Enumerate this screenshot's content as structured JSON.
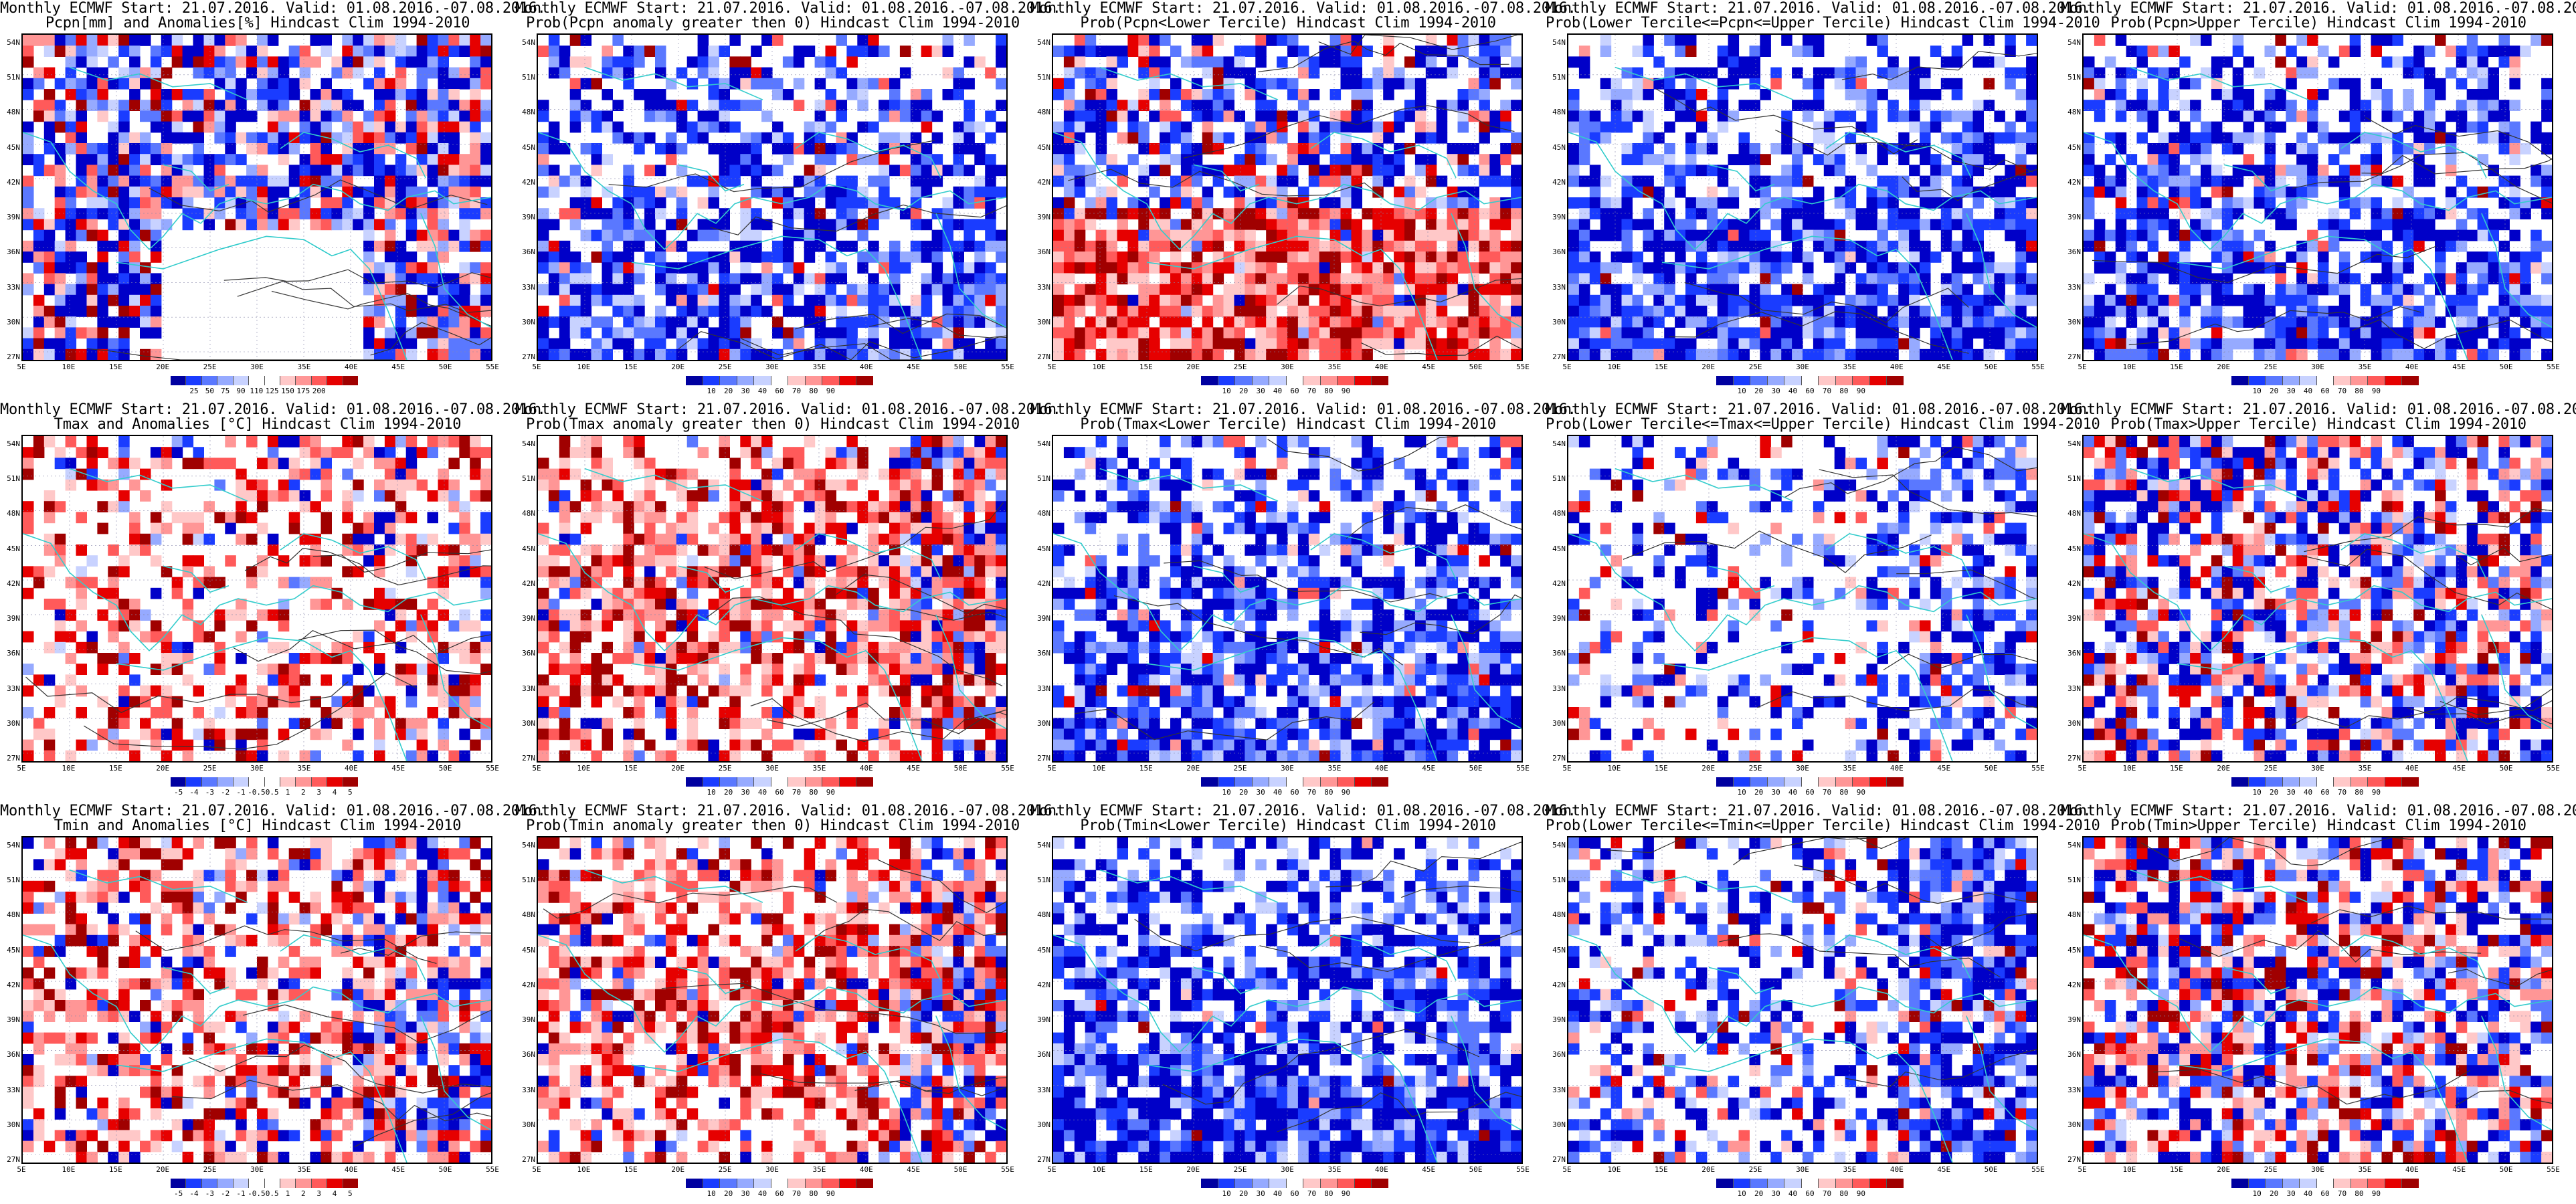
{
  "title_prefix": "Monthly ECMWF Start: 21.07.2016. Valid: 01.08.2016.-07.08.2016.",
  "y_labels": [
    "54N",
    "51N",
    "48N",
    "45N",
    "42N",
    "39N",
    "36N",
    "33N",
    "30N",
    "27N"
  ],
  "x_labels": [
    "5E",
    "10E",
    "15E",
    "20E",
    "25E",
    "30E",
    "35E",
    "40E",
    "45E",
    "50E",
    "55E"
  ],
  "colors": {
    "coast": "#33cccc",
    "contour": "#333333",
    "blue_scale": [
      "#0000c8",
      "#1a3cff",
      "#5a78ff",
      "#96aaff",
      "#c8d2ff",
      "#ffffff"
    ],
    "red_scale": [
      "#ffffff",
      "#ffc8c8",
      "#ff9696",
      "#ff5a5a",
      "#e60000",
      "#a00000"
    ]
  },
  "panels": [
    {
      "id": "pcpn-anom",
      "subtitle": "Pcpn[mm] and Anomalies[%] Hindcast Clim 1994-2010",
      "colorbar": {
        "colors": [
          "#0000a0",
          "#1a3cff",
          "#5a78ff",
          "#96aaff",
          "#c8d2ff",
          "#ffffff",
          "#ffffff",
          "#ffc8c8",
          "#ff9696",
          "#ff5a5a",
          "#e60000",
          "#a00000"
        ],
        "ticks": [
          "25",
          "50",
          "75",
          "90",
          "110",
          "125",
          "150",
          "175",
          "200"
        ]
      }
    },
    {
      "id": "pcpn-prob-pos",
      "subtitle": "Prob(Pcpn anomaly greater then 0) Hindcast Clim 1994-2010",
      "colorbar": {
        "colors": [
          "#0000a0",
          "#1a3cff",
          "#5a78ff",
          "#96aaff",
          "#c8d2ff",
          "#ffffff",
          "#ffc8c8",
          "#ff9696",
          "#ff5a5a",
          "#e60000",
          "#a00000"
        ],
        "ticks": [
          "10",
          "20",
          "30",
          "40",
          "60",
          "70",
          "80",
          "90"
        ]
      }
    },
    {
      "id": "pcpn-prob-lower",
      "subtitle": "Prob(Pcpn<Lower Tercile) Hindcast Clim 1994-2010",
      "colorbar": {
        "colors": [
          "#0000a0",
          "#1a3cff",
          "#5a78ff",
          "#96aaff",
          "#c8d2ff",
          "#ffffff",
          "#ffc8c8",
          "#ff9696",
          "#ff5a5a",
          "#e60000",
          "#a00000"
        ],
        "ticks": [
          "10",
          "20",
          "30",
          "40",
          "60",
          "70",
          "80",
          "90"
        ]
      }
    },
    {
      "id": "pcpn-prob-middle",
      "subtitle": "Prob(Lower Tercile<=Pcpn<=Upper Tercile) Hindcast Clim 1994-2010",
      "colorbar": {
        "colors": [
          "#0000a0",
          "#1a3cff",
          "#5a78ff",
          "#96aaff",
          "#c8d2ff",
          "#ffffff",
          "#ffc8c8",
          "#ff9696",
          "#ff5a5a",
          "#e60000",
          "#a00000"
        ],
        "ticks": [
          "10",
          "20",
          "30",
          "40",
          "60",
          "70",
          "80",
          "90"
        ]
      }
    },
    {
      "id": "pcpn-prob-upper",
      "subtitle": "Prob(Pcpn>Upper Tercile) Hindcast Clim 1994-2010",
      "colorbar": {
        "colors": [
          "#0000a0",
          "#1a3cff",
          "#5a78ff",
          "#96aaff",
          "#c8d2ff",
          "#ffffff",
          "#ffc8c8",
          "#ff9696",
          "#ff5a5a",
          "#e60000",
          "#a00000"
        ],
        "ticks": [
          "10",
          "20",
          "30",
          "40",
          "60",
          "70",
          "80",
          "90"
        ]
      }
    },
    {
      "id": "tmax-anom",
      "subtitle": "Tmax and Anomalies [°C] Hindcast Clim 1994-2010",
      "colorbar": {
        "colors": [
          "#0000a0",
          "#1a3cff",
          "#5a78ff",
          "#96aaff",
          "#c8d2ff",
          "#ffffff",
          "#ffffff",
          "#ffc8c8",
          "#ff9696",
          "#ff5a5a",
          "#e60000",
          "#a00000"
        ],
        "ticks": [
          "-5",
          "-4",
          "-3",
          "-2",
          "-1",
          "-0.5",
          "0.5",
          "1",
          "2",
          "3",
          "4",
          "5"
        ]
      }
    },
    {
      "id": "tmax-prob-pos",
      "subtitle": "Prob(Tmax anomaly greater then 0) Hindcast Clim 1994-2010",
      "colorbar": {
        "colors": [
          "#0000a0",
          "#1a3cff",
          "#5a78ff",
          "#96aaff",
          "#c8d2ff",
          "#ffffff",
          "#ffc8c8",
          "#ff9696",
          "#ff5a5a",
          "#e60000",
          "#a00000"
        ],
        "ticks": [
          "10",
          "20",
          "30",
          "40",
          "60",
          "70",
          "80",
          "90"
        ]
      }
    },
    {
      "id": "tmax-prob-lower",
      "subtitle": "Prob(Tmax<Lower Tercile) Hindcast Clim 1994-2010",
      "colorbar": {
        "colors": [
          "#0000a0",
          "#1a3cff",
          "#5a78ff",
          "#96aaff",
          "#c8d2ff",
          "#ffffff",
          "#ffc8c8",
          "#ff9696",
          "#ff5a5a",
          "#e60000",
          "#a00000"
        ],
        "ticks": [
          "10",
          "20",
          "30",
          "40",
          "60",
          "70",
          "80",
          "90"
        ]
      }
    },
    {
      "id": "tmax-prob-middle",
      "subtitle": "Prob(Lower Tercile<=Tmax<=Upper Tercile) Hindcast Clim 1994-2010",
      "colorbar": {
        "colors": [
          "#0000a0",
          "#1a3cff",
          "#5a78ff",
          "#96aaff",
          "#c8d2ff",
          "#ffffff",
          "#ffc8c8",
          "#ff9696",
          "#ff5a5a",
          "#e60000",
          "#a00000"
        ],
        "ticks": [
          "10",
          "20",
          "30",
          "40",
          "60",
          "70",
          "80",
          "90"
        ]
      }
    },
    {
      "id": "tmax-prob-upper",
      "subtitle": "Prob(Tmax>Upper Tercile) Hindcast Clim 1994-2010",
      "colorbar": {
        "colors": [
          "#0000a0",
          "#1a3cff",
          "#5a78ff",
          "#96aaff",
          "#c8d2ff",
          "#ffffff",
          "#ffc8c8",
          "#ff9696",
          "#ff5a5a",
          "#e60000",
          "#a00000"
        ],
        "ticks": [
          "10",
          "20",
          "30",
          "40",
          "60",
          "70",
          "80",
          "90"
        ]
      }
    },
    {
      "id": "tmin-anom",
      "subtitle": "Tmin and Anomalies [°C] Hindcast Clim 1994-2010",
      "colorbar": {
        "colors": [
          "#0000a0",
          "#1a3cff",
          "#5a78ff",
          "#96aaff",
          "#c8d2ff",
          "#ffffff",
          "#ffffff",
          "#ffc8c8",
          "#ff9696",
          "#ff5a5a",
          "#e60000",
          "#a00000"
        ],
        "ticks": [
          "-5",
          "-4",
          "-3",
          "-2",
          "-1",
          "-0.5",
          "0.5",
          "1",
          "2",
          "3",
          "4",
          "5"
        ]
      }
    },
    {
      "id": "tmin-prob-pos",
      "subtitle": "Prob(Tmin anomaly greater then 0) Hindcast Clim 1994-2010",
      "colorbar": {
        "colors": [
          "#0000a0",
          "#1a3cff",
          "#5a78ff",
          "#96aaff",
          "#c8d2ff",
          "#ffffff",
          "#ffc8c8",
          "#ff9696",
          "#ff5a5a",
          "#e60000",
          "#a00000"
        ],
        "ticks": [
          "10",
          "20",
          "30",
          "40",
          "60",
          "70",
          "80",
          "90"
        ]
      }
    },
    {
      "id": "tmin-prob-lower",
      "subtitle": "Prob(Tmin<Lower Tercile) Hindcast Clim 1994-2010",
      "colorbar": {
        "colors": [
          "#0000a0",
          "#1a3cff",
          "#5a78ff",
          "#96aaff",
          "#c8d2ff",
          "#ffffff",
          "#ffc8c8",
          "#ff9696",
          "#ff5a5a",
          "#e60000",
          "#a00000"
        ],
        "ticks": [
          "10",
          "20",
          "30",
          "40",
          "60",
          "70",
          "80",
          "90"
        ]
      }
    },
    {
      "id": "tmin-prob-middle",
      "subtitle": "Prob(Lower Tercile<=Tmin<=Upper Tercile) Hindcast Clim 1994-2010",
      "colorbar": {
        "colors": [
          "#0000a0",
          "#1a3cff",
          "#5a78ff",
          "#96aaff",
          "#c8d2ff",
          "#ffffff",
          "#ffc8c8",
          "#ff9696",
          "#ff5a5a",
          "#e60000",
          "#a00000"
        ],
        "ticks": [
          "10",
          "20",
          "30",
          "40",
          "60",
          "70",
          "80",
          "90"
        ]
      }
    },
    {
      "id": "tmin-prob-upper",
      "subtitle": "Prob(Tmin>Upper Tercile) Hindcast Clim 1994-2010",
      "colorbar": {
        "colors": [
          "#0000a0",
          "#1a3cff",
          "#5a78ff",
          "#96aaff",
          "#c8d2ff",
          "#ffffff",
          "#ffc8c8",
          "#ff9696",
          "#ff5a5a",
          "#e60000",
          "#a00000"
        ],
        "ticks": [
          "10",
          "20",
          "30",
          "40",
          "60",
          "70",
          "80",
          "90"
        ]
      }
    }
  ]
}
